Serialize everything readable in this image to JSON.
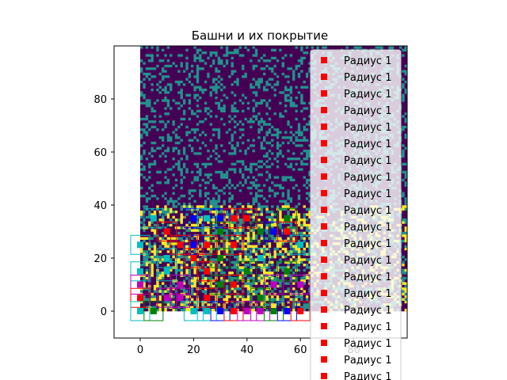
{
  "chart_data": {
    "type": "heatmap",
    "title": "Башни и их покрытие",
    "xlabel": "",
    "ylabel": "",
    "xlim": [
      -10,
      100
    ],
    "ylim": [
      -10,
      100
    ],
    "x_ticks": [
      0,
      20,
      40,
      60,
      80
    ],
    "y_ticks": [
      0,
      20,
      40,
      60,
      80
    ],
    "grid": false,
    "legend_position": "upper right",
    "grid_cells": {
      "x_range": [
        0,
        100
      ],
      "y_range": [
        0,
        100
      ],
      "colormap": [
        "#440154",
        "#21918c",
        "#fde725"
      ],
      "category_fractions": {
        "empty": 0.72,
        "obstacle": 0.28
      },
      "covered_region_y_max": 40
    },
    "towers": [
      {
        "x": 5,
        "y": 35,
        "color": "#00bfbf"
      },
      {
        "x": 10,
        "y": 30,
        "color": "#ff0000"
      },
      {
        "x": 20,
        "y": 35,
        "color": "#0000ff"
      },
      {
        "x": 25,
        "y": 35,
        "color": "#00bfbf"
      },
      {
        "x": 30,
        "y": 35,
        "color": "#0000ff"
      },
      {
        "x": 35,
        "y": 35,
        "color": "#ff0000"
      },
      {
        "x": 40,
        "y": 35,
        "color": "#ff0000"
      },
      {
        "x": 55,
        "y": 35,
        "color": "#008000"
      },
      {
        "x": 45,
        "y": 30,
        "color": "#008000"
      },
      {
        "x": 50,
        "y": 30,
        "color": "#0000ff"
      },
      {
        "x": 55,
        "y": 30,
        "color": "#ff0000"
      },
      {
        "x": 30,
        "y": 30,
        "color": "#008000"
      },
      {
        "x": 20,
        "y": 25,
        "color": "#0000ff"
      },
      {
        "x": 15,
        "y": 25,
        "color": "#ff0000"
      },
      {
        "x": 25,
        "y": 25,
        "color": "#ff0000"
      },
      {
        "x": 35,
        "y": 25,
        "color": "#ff0000"
      },
      {
        "x": 0,
        "y": 25,
        "color": "#00bfbf"
      },
      {
        "x": 60,
        "y": 25,
        "color": "#00bfbf"
      },
      {
        "x": 20,
        "y": 20,
        "color": "#ff0000"
      },
      {
        "x": 30,
        "y": 20,
        "color": "#008000"
      },
      {
        "x": 45,
        "y": 20,
        "color": "#00bfbf"
      },
      {
        "x": 10,
        "y": 20,
        "color": "#00bfbf"
      },
      {
        "x": 0,
        "y": 15,
        "color": "#00bfbf"
      },
      {
        "x": 10,
        "y": 15,
        "color": "#00bfbf"
      },
      {
        "x": 25,
        "y": 15,
        "color": "#ff0000"
      },
      {
        "x": 40,
        "y": 15,
        "color": "#008000"
      },
      {
        "x": 55,
        "y": 15,
        "color": "#008000"
      },
      {
        "x": 0,
        "y": 10,
        "color": "#bf00bf"
      },
      {
        "x": 15,
        "y": 10,
        "color": "#bf00bf"
      },
      {
        "x": 30,
        "y": 10,
        "color": "#008000"
      },
      {
        "x": 35,
        "y": 10,
        "color": "#ff0000"
      },
      {
        "x": 50,
        "y": 10,
        "color": "#bf00bf"
      },
      {
        "x": 60,
        "y": 10,
        "color": "#bf00bf"
      },
      {
        "x": 0,
        "y": 5,
        "color": "#ff0000"
      },
      {
        "x": 10,
        "y": 5,
        "color": "#bf00bf"
      },
      {
        "x": 15,
        "y": 5,
        "color": "#bf00bf"
      },
      {
        "x": 25,
        "y": 5,
        "color": "#ff0000"
      },
      {
        "x": 45,
        "y": 5,
        "color": "#008000"
      },
      {
        "x": 0,
        "y": 0,
        "color": "#00bfbf"
      },
      {
        "x": 5,
        "y": 0,
        "color": "#008000"
      },
      {
        "x": 20,
        "y": 0,
        "color": "#00bfbf"
      },
      {
        "x": 25,
        "y": 0,
        "color": "#00bfbf"
      },
      {
        "x": 30,
        "y": 0,
        "color": "#0000ff"
      },
      {
        "x": 35,
        "y": 0,
        "color": "#ff0000"
      },
      {
        "x": 40,
        "y": 0,
        "color": "#bf00bf"
      },
      {
        "x": 45,
        "y": 0,
        "color": "#bf00bf"
      },
      {
        "x": 50,
        "y": 0,
        "color": "#008000"
      },
      {
        "x": 55,
        "y": 0,
        "color": "#0000ff"
      },
      {
        "x": 60,
        "y": 0,
        "color": "#ff0000"
      }
    ],
    "legend": {
      "entries": [
        "Радиус 1",
        "Радиус 1",
        "Радиус 1",
        "Радиус 1",
        "Радиус 1",
        "Радиус 1",
        "Радиус 1",
        "Радиус 1",
        "Радиус 1",
        "Радиус 1",
        "Радиус 1",
        "Радиус 1",
        "Радиус 1",
        "Радиус 1",
        "Радиус 1",
        "Радиус 1",
        "Радиус 1",
        "Радиус 1",
        "Радиус 1",
        "Радиус 1"
      ],
      "marker_color": "#ff0000"
    }
  }
}
